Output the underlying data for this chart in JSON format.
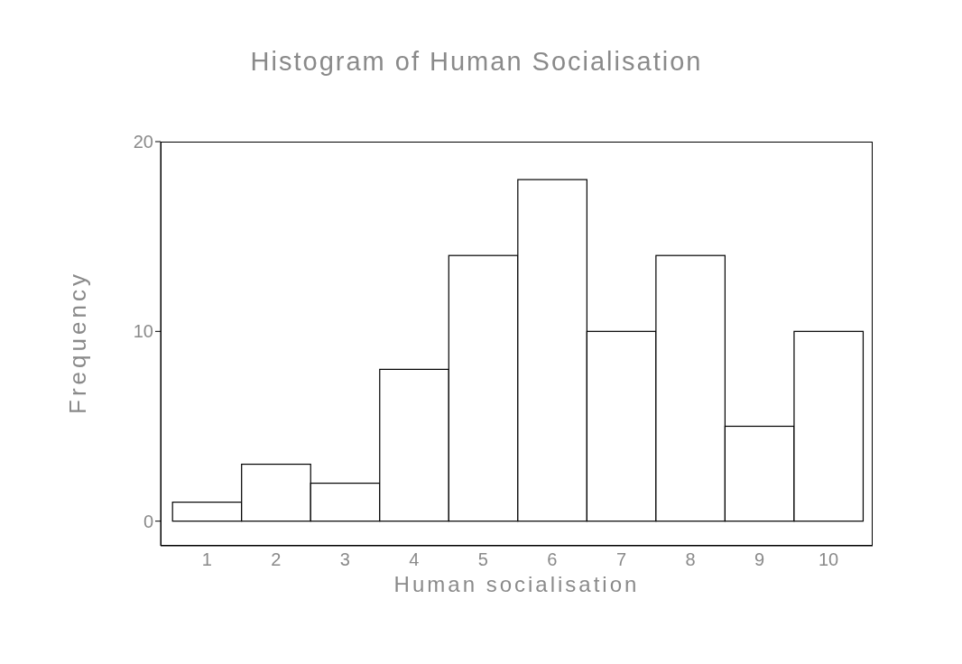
{
  "chart_data": {
    "type": "histogram",
    "title": "Histogram of Human Socialisation",
    "xlabel": "Human socialisation",
    "ylabel": "Frequency",
    "bins": [
      0.5,
      1.5,
      2.5,
      3.5,
      4.5,
      5.5,
      6.5,
      7.5,
      8.5,
      9.5,
      10.5
    ],
    "values": [
      1,
      3,
      2,
      8,
      14,
      18,
      10,
      14,
      5,
      10
    ],
    "color": "#ffffff",
    "xlim": [
      0.33,
      10.64
    ],
    "xticks": [
      1,
      2,
      3,
      4,
      5,
      6,
      7,
      8,
      9,
      10
    ],
    "ylim": [
      -1.3,
      20
    ],
    "yticks": [
      0,
      10,
      20
    ],
    "grid": false
  }
}
